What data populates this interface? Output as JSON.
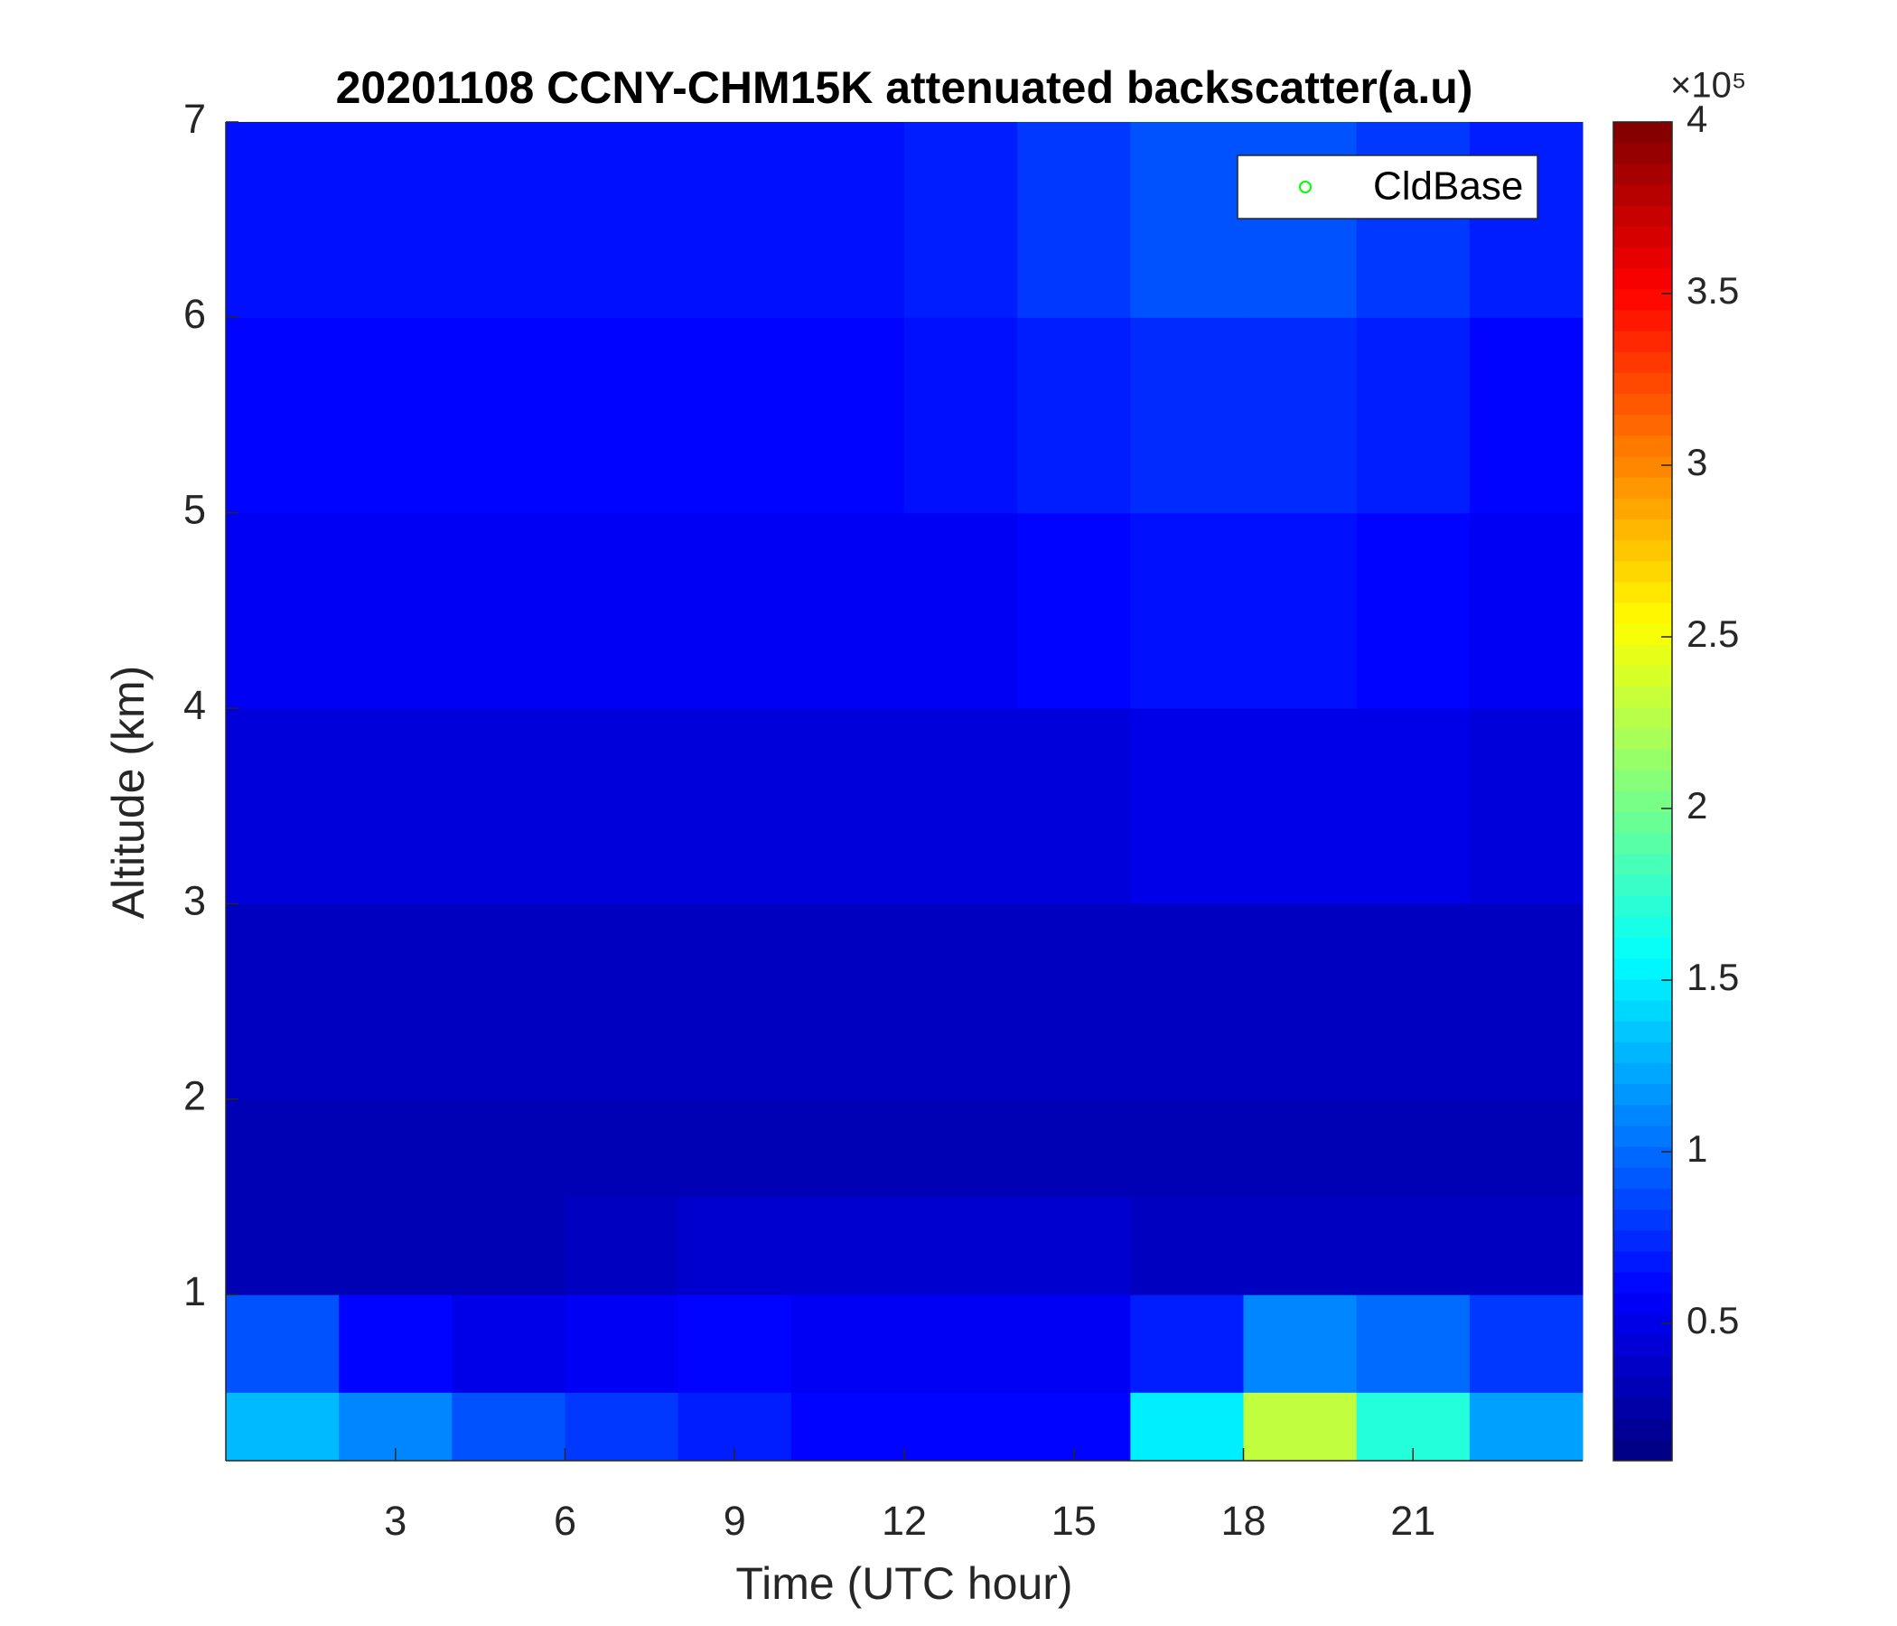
{
  "chart_data": {
    "type": "heatmap",
    "title": "20201108 CCNY-CHM15K attenuated backscatter(a.u)",
    "x_label": "Time (UTC hour)",
    "y_label": "Altitude (km)",
    "xlim": [
      0,
      24
    ],
    "xticks": [
      3,
      6,
      9,
      12,
      15,
      18,
      21
    ],
    "ylim": [
      0.15,
      7
    ],
    "yticks": [
      1,
      2,
      3,
      4,
      5,
      6,
      7
    ],
    "xbins": [
      0,
      2,
      4,
      6,
      8,
      10,
      12,
      14,
      16,
      18,
      20,
      22,
      24
    ],
    "ybins": [
      0.15,
      0.5,
      1,
      1.5,
      2,
      3,
      4,
      5,
      6,
      7
    ],
    "z": [
      [
        130000,
        110000,
        90000,
        80000,
        70000,
        60000,
        60000,
        60000,
        150000,
        230000,
        170000,
        120000
      ],
      [
        90000,
        60000,
        50000,
        55000,
        60000,
        55000,
        55000,
        55000,
        70000,
        110000,
        100000,
        80000
      ],
      [
        30000,
        30000,
        30000,
        35000,
        40000,
        40000,
        40000,
        40000,
        35000,
        35000,
        35000,
        35000
      ],
      [
        30000,
        30000,
        30000,
        30000,
        30000,
        30000,
        30000,
        30000,
        30000,
        30000,
        30000,
        30000
      ],
      [
        35000,
        35000,
        35000,
        35000,
        35000,
        35000,
        35000,
        35000,
        35000,
        35000,
        35000,
        35000
      ],
      [
        45000,
        45000,
        45000,
        45000,
        45000,
        45000,
        45000,
        45000,
        50000,
        50000,
        50000,
        45000
      ],
      [
        55000,
        55000,
        55000,
        55000,
        55000,
        55000,
        55000,
        60000,
        65000,
        65000,
        60000,
        55000
      ],
      [
        60000,
        60000,
        60000,
        60000,
        60000,
        60000,
        65000,
        70000,
        75000,
        75000,
        70000,
        60000
      ],
      [
        65000,
        65000,
        65000,
        65000,
        65000,
        65000,
        70000,
        80000,
        90000,
        90000,
        80000,
        70000
      ]
    ],
    "colormap": "jet",
    "clim": [
      10000,
      400000
    ],
    "colorbar_ticks": [
      {
        "value": 50000,
        "label": "0.5"
      },
      {
        "value": 100000,
        "label": "1"
      },
      {
        "value": 150000,
        "label": "1.5"
      },
      {
        "value": 200000,
        "label": "2"
      },
      {
        "value": 250000,
        "label": "2.5"
      },
      {
        "value": 300000,
        "label": "3"
      },
      {
        "value": 350000,
        "label": "3.5"
      },
      {
        "value": 400000,
        "label": "4"
      }
    ],
    "colorbar_multiplier": "×10⁵",
    "legend": [
      {
        "name": "CldBase",
        "color": "#00ff00",
        "marker": "circle"
      }
    ],
    "legend_position": "upper right"
  }
}
